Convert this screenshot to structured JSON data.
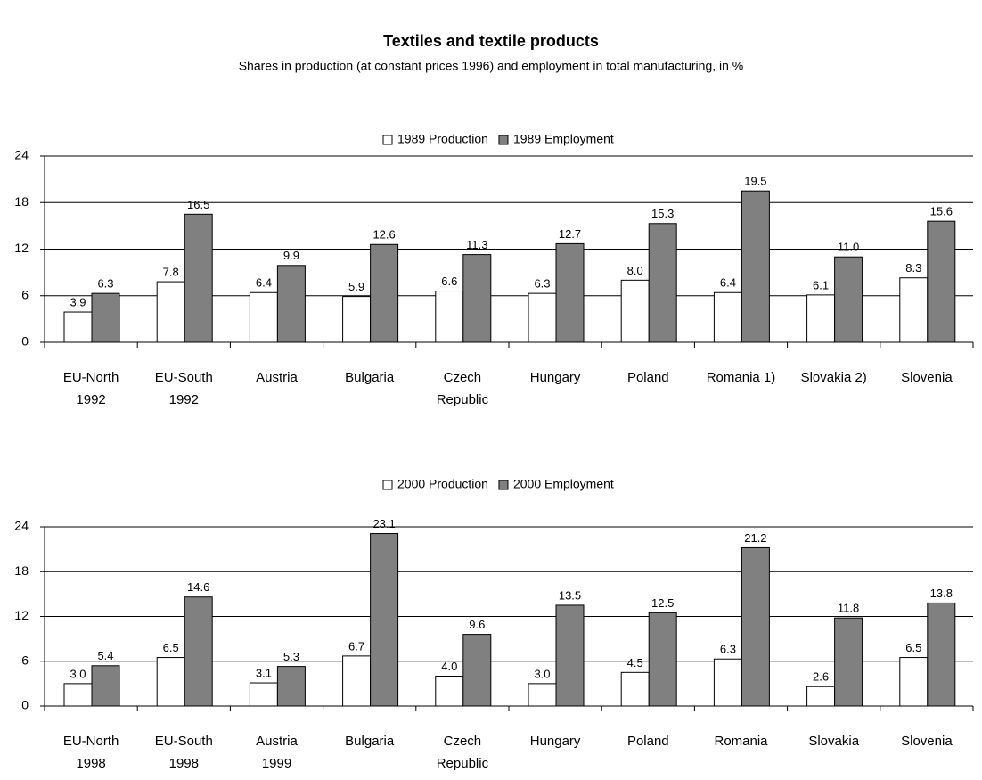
{
  "title": "Textiles and textile products",
  "subtitle": "Shares in production (at constant prices 1996) and employment in total manufacturing, in %",
  "chart_data": [
    {
      "type": "bar",
      "categories": [
        "EU-North\n1992",
        "EU-South\n1992",
        "Austria",
        "Bulgaria",
        "Czech\nRepublic",
        "Hungary",
        "Poland",
        "Romania 1)",
        "Slovakia 2)",
        "Slovenia"
      ],
      "series": [
        {
          "name": "1989 Production",
          "color": "#ffffff",
          "values": [
            3.9,
            7.8,
            6.4,
            5.9,
            6.6,
            6.3,
            8.0,
            6.4,
            6.1,
            8.3
          ],
          "value_labels": [
            "3.9",
            "7.8",
            "6.4",
            "5.9",
            "6.6",
            "6.3",
            "8.0",
            "6.4",
            "6.1",
            "8.3"
          ]
        },
        {
          "name": "1989 Employment",
          "color": "#808080",
          "values": [
            6.3,
            16.5,
            9.9,
            12.6,
            11.3,
            12.7,
            15.3,
            19.5,
            11.0,
            15.6
          ],
          "value_labels": [
            "6.3",
            "16.5",
            "9.9",
            "12.6",
            "11.3",
            "12.7",
            "15.3",
            "19.5",
            "11.0",
            "15.6"
          ]
        }
      ],
      "ylim": [
        0,
        24
      ],
      "yticks": [
        0,
        6,
        12,
        18,
        24
      ],
      "grid": true,
      "legend": "top"
    },
    {
      "type": "bar",
      "categories": [
        "EU-North\n1998",
        "EU-South\n1998",
        "Austria\n1999",
        "Bulgaria",
        "Czech\nRepublic",
        "Hungary",
        "Poland",
        "Romania",
        "Slovakia",
        "Slovenia"
      ],
      "series": [
        {
          "name": "2000 Production",
          "color": "#ffffff",
          "values": [
            3.0,
            6.5,
            3.1,
            6.7,
            4.0,
            3.0,
            4.5,
            6.3,
            2.6,
            6.5
          ],
          "value_labels": [
            "3.0",
            "6.5",
            "3.1",
            "6.7",
            "4.0",
            "3.0",
            "4.5",
            "6.3",
            "2.6",
            "6.5"
          ]
        },
        {
          "name": "2000 Employment",
          "color": "#808080",
          "values": [
            5.4,
            14.6,
            5.3,
            23.1,
            9.6,
            13.5,
            12.5,
            21.2,
            11.8,
            13.8
          ],
          "value_labels": [
            "5.4",
            "14.6",
            "5.3",
            "23.1",
            "9.6",
            "13.5",
            "12.5",
            "21.2",
            "11.8",
            "13.8"
          ]
        }
      ],
      "ylim": [
        0,
        24
      ],
      "yticks": [
        0,
        6,
        12,
        18,
        24
      ],
      "grid": true,
      "legend": "top"
    }
  ]
}
